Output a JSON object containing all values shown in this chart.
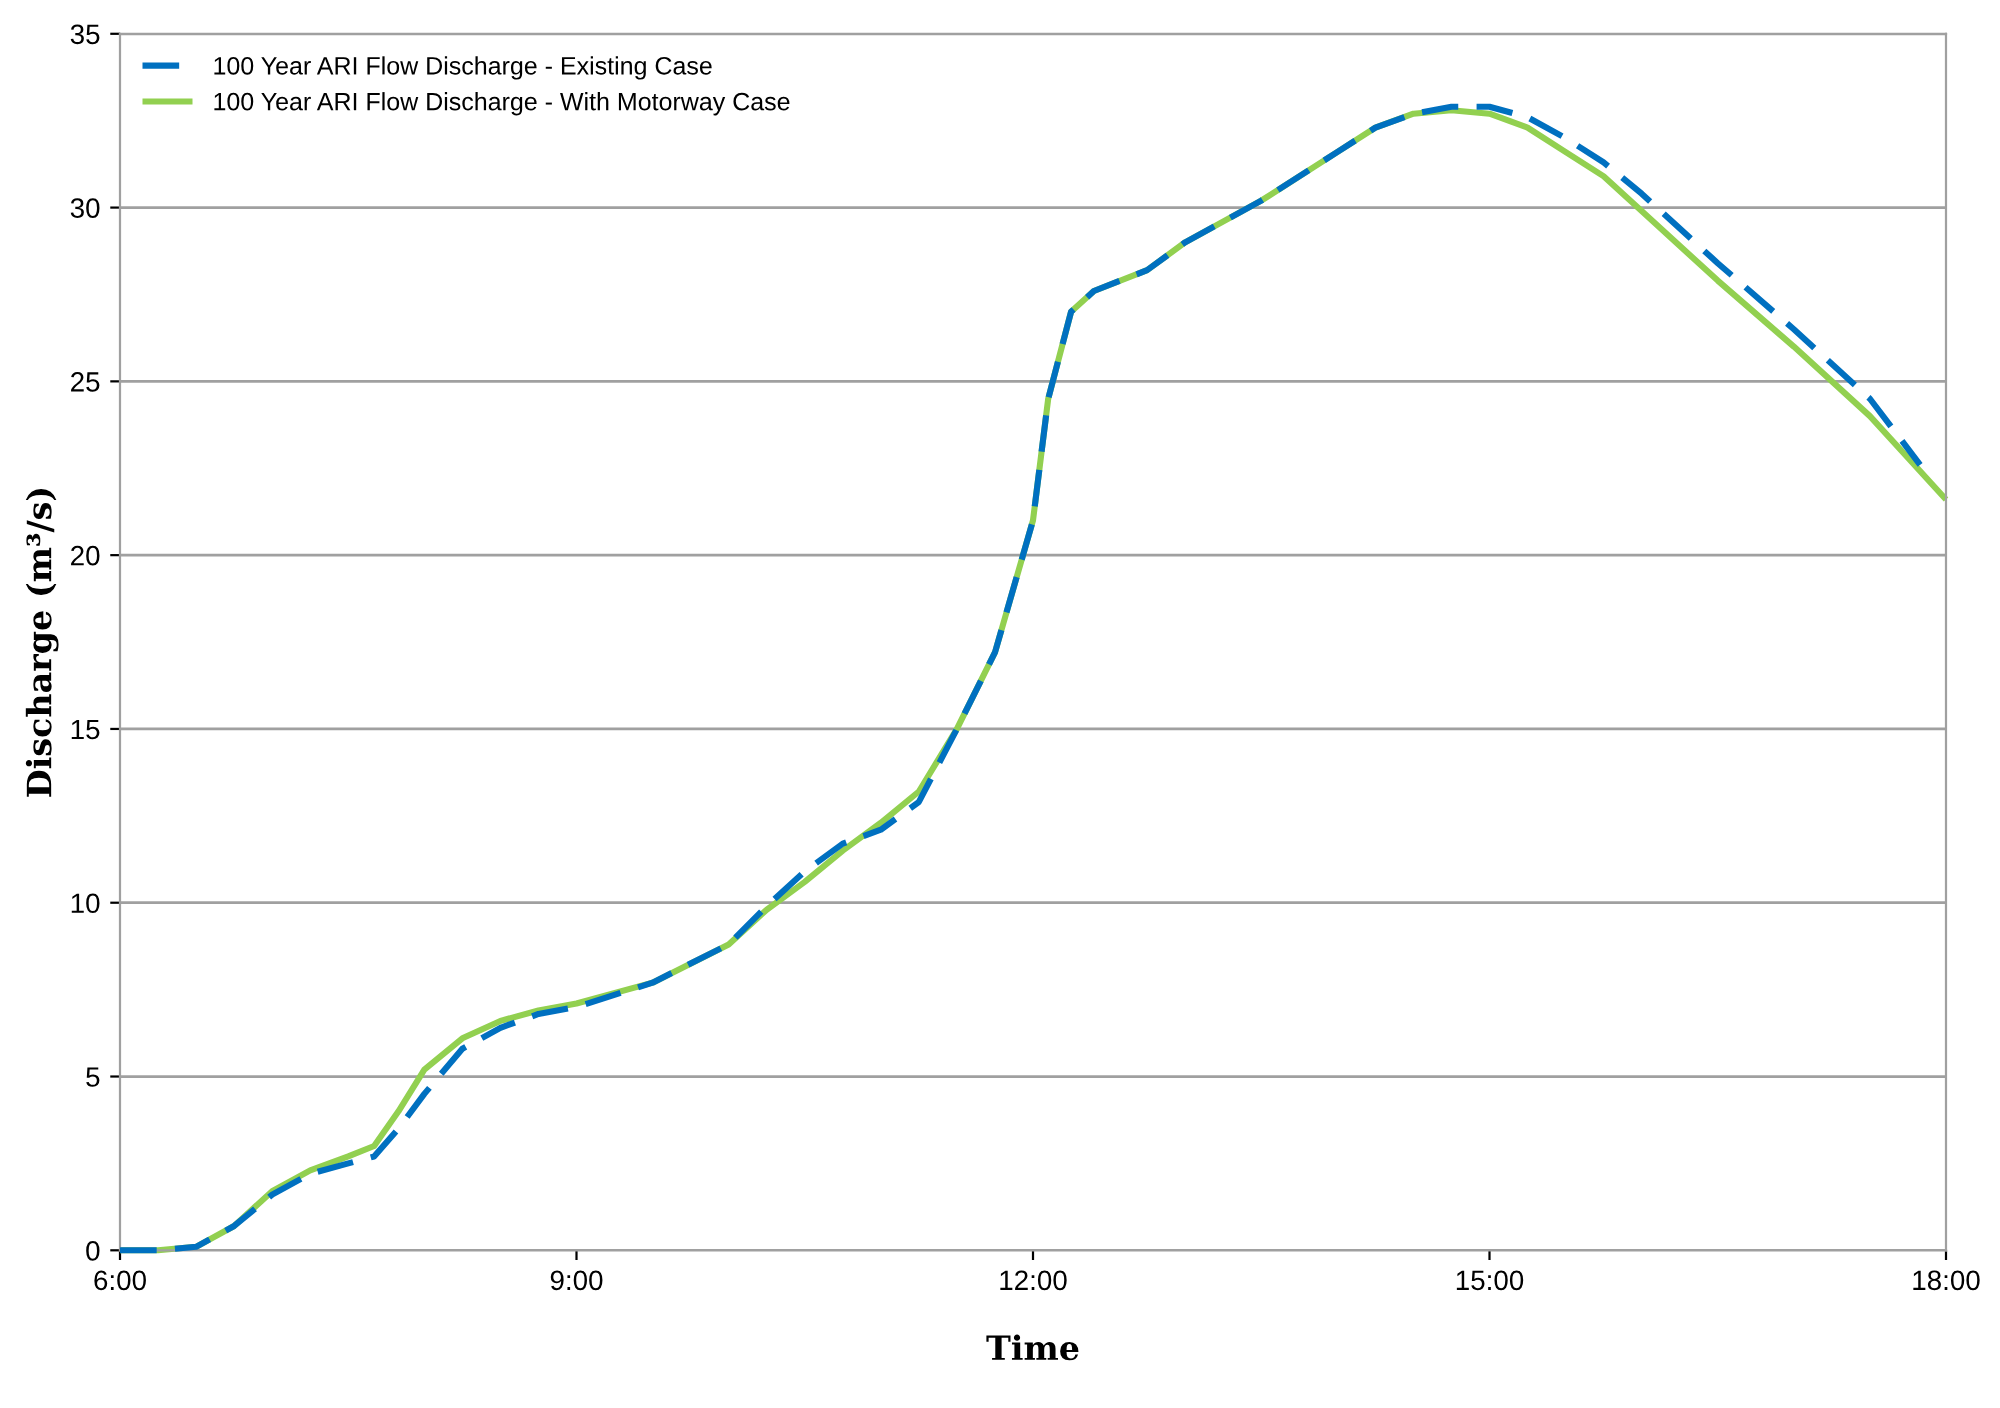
{
  "chart_data": {
    "type": "line",
    "xlabel": "Time",
    "ylabel": "Discharge (m³/s)",
    "xlim": [
      6,
      18
    ],
    "xticks": [
      {
        "value": 6,
        "label": "6:00"
      },
      {
        "value": 9,
        "label": "9:00"
      },
      {
        "value": 12,
        "label": "12:00"
      },
      {
        "value": 15,
        "label": "15:00"
      },
      {
        "value": 18,
        "label": "18:00"
      }
    ],
    "ylim": [
      0,
      35
    ],
    "yticks": [
      0,
      5,
      10,
      15,
      20,
      25,
      30,
      35
    ],
    "grid": "y",
    "legend": "top left",
    "marker": "none",
    "series": [
      {
        "name": "100 Year ARI Flow Discharge - Existing Case",
        "color": "#0070c0",
        "line_style": "dashed",
        "x": [
          6.0,
          6.25,
          6.5,
          6.75,
          7.0,
          7.25,
          7.5,
          7.67,
          7.83,
          8.0,
          8.25,
          8.5,
          8.75,
          9.0,
          9.5,
          10.0,
          10.25,
          10.5,
          10.75,
          11.0,
          11.25,
          11.5,
          11.75,
          12.0,
          12.1,
          12.25,
          12.4,
          12.75,
          13.0,
          13.5,
          14.0,
          14.25,
          14.5,
          14.75,
          15.0,
          15.25,
          15.5,
          15.75,
          16.0,
          16.5,
          17.0,
          17.5,
          17.83
        ],
        "values": [
          0,
          0,
          0.1,
          0.7,
          1.6,
          2.2,
          2.5,
          2.7,
          3.5,
          4.5,
          5.8,
          6.4,
          6.8,
          7.0,
          7.7,
          8.8,
          9.9,
          10.9,
          11.7,
          12.1,
          12.9,
          15.0,
          17.2,
          21.0,
          24.5,
          27.0,
          27.6,
          28.2,
          29.0,
          30.2,
          31.6,
          32.3,
          32.7,
          32.9,
          32.9,
          32.6,
          32.0,
          31.3,
          30.4,
          28.4,
          26.5,
          24.5,
          22.6
        ]
      },
      {
        "name": "100 Year ARI Flow Discharge - With Motorway Case",
        "color": "#92d050",
        "line_style": "solid",
        "x": [
          6.0,
          6.25,
          6.5,
          6.75,
          7.0,
          7.25,
          7.5,
          7.67,
          7.83,
          8.0,
          8.25,
          8.5,
          8.75,
          9.0,
          9.5,
          10.0,
          10.25,
          10.5,
          10.75,
          11.0,
          11.25,
          11.5,
          11.75,
          12.0,
          12.1,
          12.25,
          12.4,
          12.75,
          13.0,
          13.5,
          14.0,
          14.25,
          14.5,
          14.75,
          15.0,
          15.25,
          15.5,
          15.75,
          16.0,
          16.5,
          17.0,
          17.5,
          18.0
        ],
        "values": [
          0,
          0,
          0.1,
          0.7,
          1.7,
          2.3,
          2.7,
          3.0,
          4.0,
          5.2,
          6.1,
          6.6,
          6.9,
          7.1,
          7.7,
          8.8,
          9.8,
          10.6,
          11.5,
          12.3,
          13.2,
          15.0,
          17.2,
          21.0,
          24.5,
          27.0,
          27.6,
          28.2,
          29.0,
          30.2,
          31.6,
          32.3,
          32.7,
          32.8,
          32.7,
          32.3,
          31.6,
          30.9,
          29.9,
          27.9,
          26.0,
          24.0,
          21.6
        ]
      }
    ]
  }
}
